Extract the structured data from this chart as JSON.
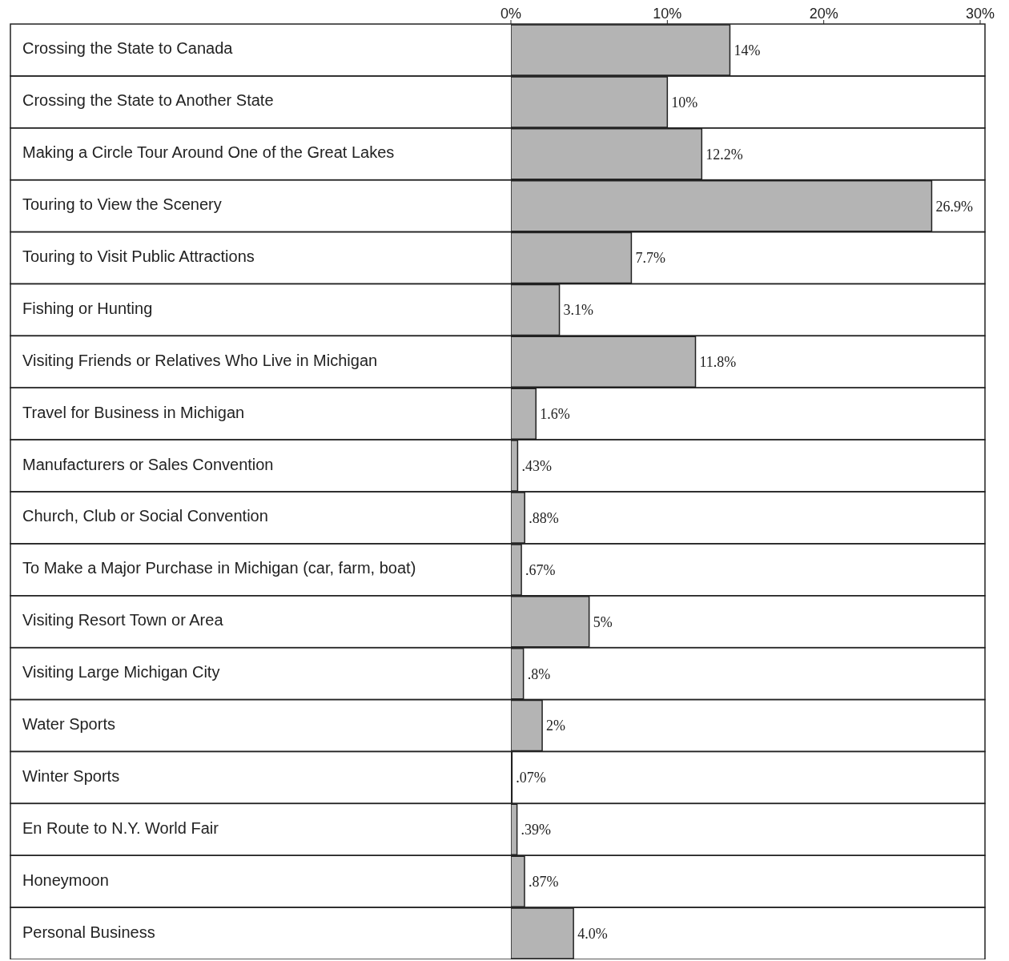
{
  "chart_data": {
    "type": "bar",
    "orientation": "horizontal",
    "categories": [
      "Crossing the State to Canada",
      "Crossing the State to Another State",
      "Making  a Circle Tour Around One of the Great Lakes",
      "Touring to View the Scenery",
      "Touring to Visit Public Attractions",
      "Fishing or Hunting",
      "Visiting Friends or Relatives Who Live in Michigan",
      "Travel for Business in Michigan",
      "Manufacturers or Sales Convention",
      "Church, Club or Social Convention",
      "To Make  a  Major Purchase in Michigan (car, farm, boat)",
      "Visiting Resort Town or Area",
      "Visiting Large Michigan City",
      "Water Sports",
      "Winter Sports",
      "En Route to N.Y. World Fair",
      "Honeymoon",
      "Personal Business"
    ],
    "values": [
      14,
      10,
      12.2,
      26.9,
      7.7,
      3.1,
      11.8,
      1.6,
      0.43,
      0.88,
      0.67,
      5,
      0.8,
      2,
      0.07,
      0.39,
      0.87,
      4.0
    ],
    "value_labels": [
      "14%",
      "10%",
      "12.2%",
      "26.9%",
      "7.7%",
      "3.1%",
      "11.8%",
      "1.6%",
      ".43%",
      ".88%",
      ".67%",
      "5%",
      ".8%",
      "2%",
      ".07%",
      ".39%",
      ".87%",
      "4.0%"
    ],
    "color": "#b4b4b4",
    "xlim": [
      0,
      30
    ],
    "xticks": [
      {
        "value": 0,
        "label": "0%"
      },
      {
        "value": 10,
        "label": "10%"
      },
      {
        "value": 20,
        "label": "20%"
      },
      {
        "value": 30,
        "label": "30%"
      }
    ],
    "grid": false,
    "legend": false
  }
}
